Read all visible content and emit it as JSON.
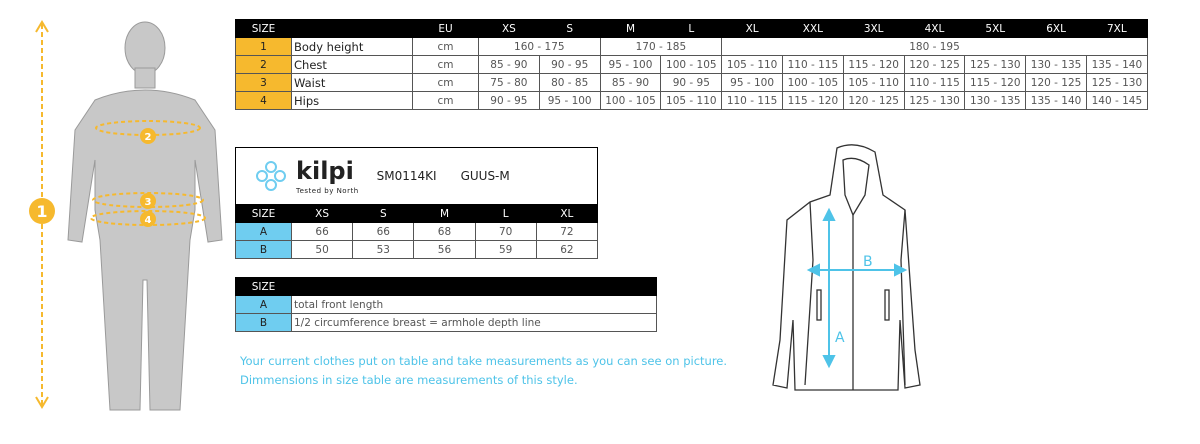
{
  "size_table": {
    "headers": [
      "SIZE",
      "",
      "EU",
      "XS",
      "S",
      "M",
      "L",
      "XL",
      "XXL",
      "3XL",
      "4XL",
      "5XL",
      "6XL",
      "7XL"
    ],
    "rows": [
      {
        "num": "1",
        "label": "Body height",
        "unit": "cm",
        "merged": [
          "160 - 175",
          "170 - 185",
          "180 - 195"
        ]
      },
      {
        "num": "2",
        "label": "Chest",
        "unit": "cm",
        "values": [
          "85 - 90",
          "90 - 95",
          "95 - 100",
          "100 - 105",
          "105 - 110",
          "110 - 115",
          "115 - 120",
          "120 - 125",
          "125 - 130",
          "130 - 135",
          "135 - 140"
        ]
      },
      {
        "num": "3",
        "label": "Waist",
        "unit": "cm",
        "values": [
          "75 - 80",
          "80 - 85",
          "85 - 90",
          "90 - 95",
          "95 - 100",
          "100 - 105",
          "105 - 110",
          "110 - 115",
          "115 - 120",
          "120 - 125",
          "125 - 130"
        ]
      },
      {
        "num": "4",
        "label": "Hips",
        "unit": "cm",
        "values": [
          "90 - 95",
          "95 - 100",
          "100 - 105",
          "105 - 110",
          "110 - 115",
          "115 - 120",
          "120 - 125",
          "125 - 130",
          "130 - 135",
          "135 - 140",
          "140 - 145"
        ]
      }
    ]
  },
  "product": {
    "brand": "kilpi",
    "tagline": "Tested by North",
    "code": "SM0114KI",
    "name": "GUUS-M"
  },
  "jacket_table": {
    "headers": [
      "SIZE",
      "XS",
      "S",
      "M",
      "L",
      "XL"
    ],
    "rows": [
      {
        "label": "A",
        "values": [
          "66",
          "66",
          "68",
          "70",
          "72"
        ]
      },
      {
        "label": "B",
        "values": [
          "50",
          "53",
          "56",
          "59",
          "62"
        ]
      }
    ]
  },
  "legend_table": {
    "header": "SIZE",
    "rows": [
      {
        "label": "A",
        "text": "total front length"
      },
      {
        "label": "B",
        "text": "1/2 circumference breast = armhole depth line"
      }
    ]
  },
  "notes": [
    "Your current clothes put on table and take measurements as you can see on picture.",
    "Dimmensions in size table are measurements of this style."
  ],
  "figure": {
    "markers": [
      "1",
      "2",
      "3",
      "4"
    ]
  },
  "jacket_figure": {
    "markers": [
      "A",
      "B"
    ]
  },
  "colors": {
    "yellow": "#f6b92e",
    "blue": "#6fcdf0",
    "note": "#4ec3e8"
  }
}
